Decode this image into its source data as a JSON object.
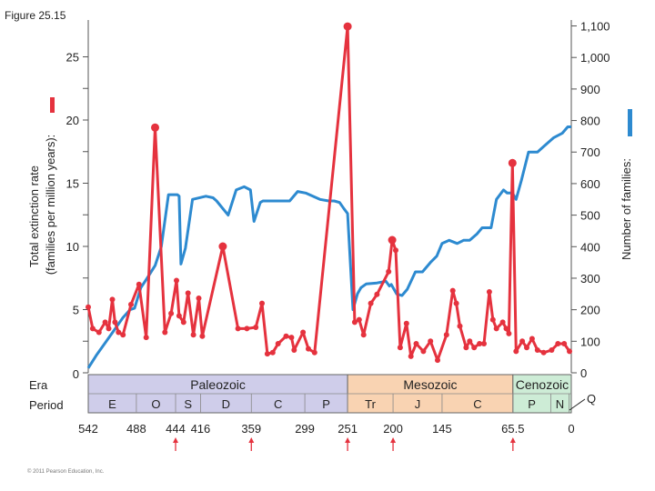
{
  "figure_label": "Figure 25.15",
  "copyright": "© 2011 Pearson Education, Inc.",
  "chart_data": {
    "type": "line",
    "title": "",
    "xlabel": "",
    "x_axis": {
      "reversed": true,
      "range_mya": [
        542,
        0
      ],
      "tick_labels": [
        "542",
        "488",
        "444",
        "416",
        "359",
        "299",
        "251",
        "200",
        "145",
        "65.5",
        "0"
      ],
      "tick_values": [
        542,
        488,
        444,
        416,
        359,
        299,
        251,
        200,
        145,
        65.5,
        0
      ]
    },
    "y_left": {
      "label_line1": "Total extinction rate",
      "label_line2": "(families per million years):",
      "range": [
        0,
        28
      ],
      "tick_labels": [
        "0",
        "5",
        "10",
        "15",
        "20",
        "25"
      ],
      "tick_values": [
        0,
        5,
        10,
        15,
        20,
        25
      ],
      "series_color": "#e5323e"
    },
    "y_right": {
      "label": "Number of families:",
      "range": [
        0,
        1120
      ],
      "tick_labels": [
        "0",
        "100",
        "200",
        "300",
        "400",
        "500",
        "600",
        "700",
        "800",
        "900",
        "1,000",
        "1,100"
      ],
      "tick_values": [
        0,
        100,
        200,
        300,
        400,
        500,
        600,
        700,
        800,
        900,
        1000,
        1100
      ],
      "series_color": "#2d8ad0"
    },
    "grid": false,
    "series": [
      {
        "axis": "right",
        "color": "#2d8ad0",
        "points": [
          [
            542,
            15
          ],
          [
            533,
            55
          ],
          [
            523,
            95
          ],
          [
            513,
            135
          ],
          [
            503,
            175
          ],
          [
            495,
            200
          ],
          [
            490,
            205
          ],
          [
            483,
            270
          ],
          [
            476,
            300
          ],
          [
            467,
            340
          ],
          [
            460,
            400
          ],
          [
            452,
            565
          ],
          [
            442,
            565
          ],
          [
            440,
            560
          ],
          [
            438,
            345
          ],
          [
            433,
            395
          ],
          [
            425,
            550
          ],
          [
            410,
            560
          ],
          [
            402,
            555
          ],
          [
            398,
            545
          ],
          [
            385,
            500
          ],
          [
            376,
            580
          ],
          [
            367,
            590
          ],
          [
            360,
            580
          ],
          [
            356,
            480
          ],
          [
            349,
            540
          ],
          [
            346,
            545
          ],
          [
            332,
            545
          ],
          [
            316,
            545
          ],
          [
            307,
            575
          ],
          [
            298,
            570
          ],
          [
            282,
            550
          ],
          [
            272,
            545
          ],
          [
            266,
            545
          ],
          [
            260,
            540
          ],
          [
            255,
            520
          ],
          [
            251,
            505
          ],
          [
            245,
            200
          ],
          [
            240,
            250
          ],
          [
            236,
            270
          ],
          [
            230,
            282
          ],
          [
            218,
            285
          ],
          [
            208,
            290
          ],
          [
            204,
            275
          ],
          [
            202,
            280
          ],
          [
            196,
            250
          ],
          [
            190,
            245
          ],
          [
            184,
            265
          ],
          [
            175,
            320
          ],
          [
            167,
            320
          ],
          [
            158,
            350
          ],
          [
            151,
            370
          ],
          [
            145,
            410
          ],
          [
            137,
            420
          ],
          [
            128,
            410
          ],
          [
            121,
            420
          ],
          [
            114,
            420
          ],
          [
            106,
            440
          ],
          [
            100,
            460
          ],
          [
            90,
            460
          ],
          [
            84,
            550
          ],
          [
            76,
            580
          ],
          [
            72,
            570
          ],
          [
            66,
            570
          ],
          [
            62,
            550
          ],
          [
            56,
            610
          ],
          [
            48,
            700
          ],
          [
            38,
            700
          ],
          [
            30,
            720
          ],
          [
            20,
            745
          ],
          [
            10,
            760
          ],
          [
            4,
            780
          ],
          [
            0,
            780
          ]
        ]
      },
      {
        "axis": "left",
        "color": "#e5323e",
        "points": [
          [
            542,
            5.2
          ],
          [
            537,
            3.5
          ],
          [
            530,
            3.2
          ],
          [
            523,
            4.0
          ],
          [
            519,
            3.5
          ],
          [
            515,
            5.8
          ],
          [
            512,
            4.0
          ],
          [
            508,
            3.2
          ],
          [
            503,
            3.0
          ],
          [
            494,
            5.4
          ],
          [
            485,
            7.0
          ],
          [
            477,
            2.8
          ],
          [
            467,
            19.4
          ],
          [
            456,
            3.2
          ],
          [
            449,
            4.7
          ],
          [
            443,
            7.3
          ],
          [
            440,
            4.5
          ],
          [
            435,
            4.0
          ],
          [
            430,
            6.3
          ],
          [
            424,
            3.0
          ],
          [
            418,
            5.9
          ],
          [
            414,
            2.9
          ],
          [
            391,
            10.0
          ],
          [
            374,
            3.5
          ],
          [
            364,
            3.5
          ],
          [
            354,
            3.6
          ],
          [
            347,
            5.5
          ],
          [
            341,
            1.5
          ],
          [
            335,
            1.6
          ],
          [
            329,
            2.3
          ],
          [
            320,
            2.9
          ],
          [
            314,
            2.8
          ],
          [
            311,
            1.8
          ],
          [
            301,
            3.2
          ],
          [
            295,
            1.9
          ],
          [
            288,
            1.6
          ],
          [
            251,
            27.4
          ],
          [
            243,
            4.0
          ],
          [
            238,
            4.2
          ],
          [
            233,
            3.0
          ],
          [
            225,
            5.5
          ],
          [
            218,
            6.2
          ],
          [
            205,
            8.0
          ],
          [
            201,
            10.5
          ],
          [
            197,
            9.7
          ],
          [
            192,
            2.0
          ],
          [
            185,
            3.9
          ],
          [
            180,
            1.3
          ],
          [
            174,
            2.3
          ],
          [
            166,
            1.7
          ],
          [
            158,
            2.5
          ],
          [
            150,
            1.0
          ],
          [
            140,
            3.0
          ],
          [
            133,
            6.5
          ],
          [
            129,
            5.5
          ],
          [
            125,
            3.7
          ],
          [
            118,
            2.0
          ],
          [
            114,
            2.5
          ],
          [
            109,
            2.0
          ],
          [
            103,
            2.3
          ],
          [
            98,
            2.3
          ],
          [
            92,
            6.4
          ],
          [
            88,
            4.2
          ],
          [
            84,
            3.5
          ],
          [
            77,
            4.0
          ],
          [
            73,
            3.5
          ],
          [
            70,
            3.1
          ],
          [
            66,
            16.6
          ],
          [
            62,
            1.7
          ],
          [
            55,
            2.5
          ],
          [
            50,
            2.0
          ],
          [
            44,
            2.7
          ],
          [
            38,
            1.8
          ],
          [
            31,
            1.6
          ],
          [
            22,
            1.8
          ],
          [
            15,
            2.3
          ],
          [
            8,
            2.3
          ],
          [
            2,
            1.7
          ]
        ]
      }
    ],
    "mass_extinction_markers_mya": [
      444,
      359,
      251,
      200,
      65.5
    ],
    "timeline": {
      "row_labels": [
        "Era",
        "Period"
      ],
      "eras": [
        {
          "name": "Paleozoic",
          "from": 542,
          "to": 251,
          "color": "#cfcdea"
        },
        {
          "name": "Mesozoic",
          "from": 251,
          "to": 65.5,
          "color": "#f9d3b2"
        },
        {
          "name": "Cenozoic",
          "from": 65.5,
          "to": 0,
          "color": "#cdecd6"
        }
      ],
      "periods": [
        {
          "name": "E",
          "from": 542,
          "to": 488
        },
        {
          "name": "O",
          "from": 488,
          "to": 444
        },
        {
          "name": "S",
          "from": 444,
          "to": 416
        },
        {
          "name": "D",
          "from": 416,
          "to": 359
        },
        {
          "name": "C",
          "from": 359,
          "to": 299
        },
        {
          "name": "P",
          "from": 299,
          "to": 251
        },
        {
          "name": "Tr",
          "from": 251,
          "to": 200
        },
        {
          "name": "J",
          "from": 200,
          "to": 145
        },
        {
          "name": "C",
          "from": 145,
          "to": 65.5
        },
        {
          "name": "P",
          "from": 65.5,
          "to": 23
        },
        {
          "name": "N",
          "from": 23,
          "to": 2.6
        },
        {
          "name": "Q",
          "from": 2.6,
          "to": 0
        }
      ]
    }
  }
}
